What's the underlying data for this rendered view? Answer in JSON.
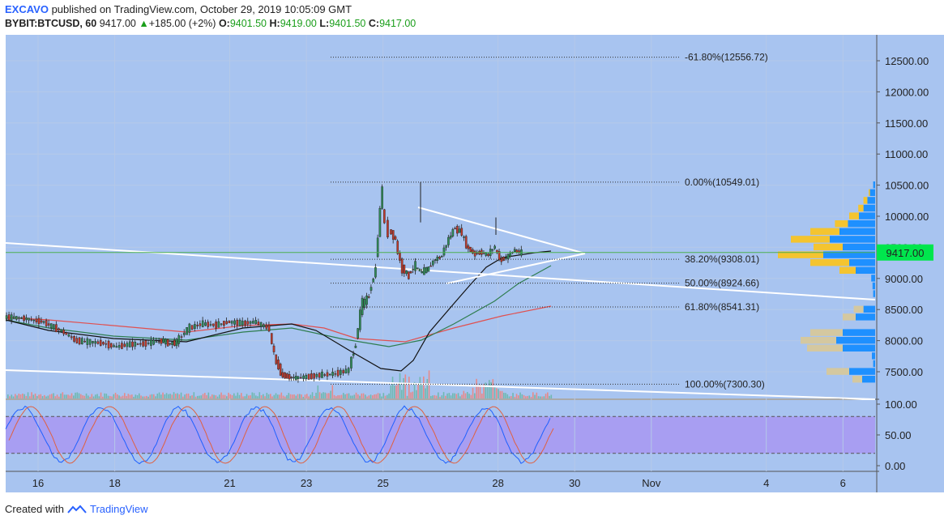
{
  "header": {
    "author": "EXCAVO",
    "published_text": "published on TradingView.com, October 29, 2019 10:05:09 GMT",
    "symbol": "BYBIT:BTCUSD, 60",
    "last": "9417.00",
    "change": "+185.00 (+2%)",
    "o_label": "O:",
    "o_value": "9401.50",
    "h_label": "H:",
    "h_value": "9419.00",
    "l_label": "L:",
    "l_value": "9401.50",
    "c_label": "C:",
    "c_value": "9417.00"
  },
  "footer": {
    "created_with": "Created with",
    "brand": "TradingView"
  },
  "colors": {
    "pane_bg": "#a8c4f0",
    "osc_band": "#a89ef2",
    "price_badge": "#00e64d",
    "fib_line": "#333333",
    "ema_fast": "#111111",
    "ema_mid": "#2e7d4f",
    "ema_slow": "#e05050",
    "vp_blue": "#1e90ff",
    "vp_yellow": "#f4c430",
    "vp_tan": "#d4c8a0"
  },
  "chart_data": {
    "type": "candlestick",
    "price_axis": {
      "ticks": [
        "12500.00",
        "12000.00",
        "11500.00",
        "11000.00",
        "10500.00",
        "10000.00",
        "9500.00",
        "9000.00",
        "8500.00",
        "8000.00",
        "7500.00"
      ],
      "current": "9417.00"
    },
    "osc_axis": {
      "ticks": [
        "100.00",
        "50.00",
        "0.00"
      ]
    },
    "x_ticks": [
      "16",
      "18",
      "21",
      "23",
      "25",
      "28",
      "30",
      "Nov",
      "4",
      "6"
    ],
    "fib_levels": [
      {
        "label": "-61.80%(12556.72)",
        "value": 12556.72
      },
      {
        "label": "0.00%(10549.01)",
        "value": 10549.01
      },
      {
        "label": "38.20%(9308.01)",
        "value": 9308.01
      },
      {
        "label": "50.00%(8924.66)",
        "value": 8924.66
      },
      {
        "label": "61.80%(8541.31)",
        "value": 8541.31
      },
      {
        "label": "100.00%(7300.30)",
        "value": 7300.3
      }
    ],
    "price_path": [
      [
        0,
        8380
      ],
      [
        3,
        8360
      ],
      [
        6,
        8300
      ],
      [
        9,
        8140
      ],
      [
        11,
        8000
      ],
      [
        13,
        7980
      ],
      [
        15,
        7960
      ],
      [
        17,
        7900
      ],
      [
        19,
        7940
      ],
      [
        21,
        7950
      ],
      [
        23,
        7980
      ],
      [
        24,
        8000
      ],
      [
        25,
        7950
      ],
      [
        26,
        7970
      ],
      [
        28,
        8200
      ],
      [
        30,
        8270
      ],
      [
        32,
        8250
      ],
      [
        34,
        8300
      ],
      [
        36,
        8280
      ],
      [
        38,
        8300
      ],
      [
        40,
        8200
      ],
      [
        41,
        7700
      ],
      [
        42,
        7450
      ],
      [
        43,
        7420
      ],
      [
        44,
        7400
      ],
      [
        46,
        7420
      ],
      [
        48,
        7450
      ],
      [
        50,
        7470
      ],
      [
        52,
        7520
      ],
      [
        53,
        7900
      ],
      [
        54,
        8550
      ],
      [
        55,
        8700
      ],
      [
        56,
        9100
      ],
      [
        57,
        10300
      ],
      [
        57.5,
        10000
      ],
      [
        58,
        9800
      ],
      [
        59,
        9650
      ],
      [
        60,
        9200
      ],
      [
        61,
        9050
      ],
      [
        62,
        9200
      ],
      [
        63,
        9100
      ],
      [
        64,
        9150
      ],
      [
        65,
        9300
      ],
      [
        66,
        9350
      ],
      [
        67,
        9600
      ],
      [
        68,
        9800
      ],
      [
        69,
        9750
      ],
      [
        70,
        9500
      ],
      [
        71,
        9400
      ],
      [
        72,
        9420
      ],
      [
        73,
        9380
      ],
      [
        74,
        9500
      ],
      [
        75,
        9300
      ],
      [
        76,
        9350
      ],
      [
        77,
        9450
      ],
      [
        78,
        9417
      ]
    ],
    "volume_profile": [
      {
        "price": 10500,
        "blue": 0.3,
        "yellow": 0
      },
      {
        "price": 10375,
        "blue": 0.8,
        "yellow": 0.2
      },
      {
        "price": 10250,
        "blue": 1.2,
        "yellow": 0.6
      },
      {
        "price": 10125,
        "blue": 1.8,
        "yellow": 0.8
      },
      {
        "price": 10000,
        "blue": 2.5,
        "yellow": 1.5
      },
      {
        "price": 9875,
        "blue": 4.2,
        "yellow": 2.0
      },
      {
        "price": 9750,
        "blue": 5.5,
        "yellow": 4.5
      },
      {
        "price": 9625,
        "blue": 7.0,
        "yellow": 6.0
      },
      {
        "price": 9500,
        "blue": 5.0,
        "yellow": 4.5
      },
      {
        "price": 9375,
        "blue": 8.0,
        "yellow": 7.0
      },
      {
        "price": 9250,
        "blue": 4.0,
        "yellow": 6.0
      },
      {
        "price": 9125,
        "blue": 3.0,
        "yellow": 2.5
      },
      {
        "price": 9000,
        "blue": 0.6,
        "yellow": 0
      },
      {
        "price": 8875,
        "blue": 0.4,
        "yellow": 0
      },
      {
        "price": 8750,
        "blue": 0.3,
        "yellow": 0
      },
      {
        "price": 8500,
        "blue": 1.8,
        "yellow": 1.5
      },
      {
        "price": 8375,
        "blue": 3.0,
        "yellow": 2.0
      },
      {
        "price": 8125,
        "blue": 5.0,
        "yellow": 5.0
      },
      {
        "price": 8000,
        "blue": 6.0,
        "yellow": 5.5
      },
      {
        "price": 7875,
        "blue": 5.0,
        "yellow": 5.5
      },
      {
        "price": 7750,
        "blue": 0.5,
        "yellow": 0
      },
      {
        "price": 7625,
        "blue": 0.3,
        "yellow": 0
      },
      {
        "price": 7500,
        "blue": 4.0,
        "yellow": 3.5
      },
      {
        "price": 7375,
        "blue": 2.0,
        "yellow": 1.5
      }
    ]
  }
}
